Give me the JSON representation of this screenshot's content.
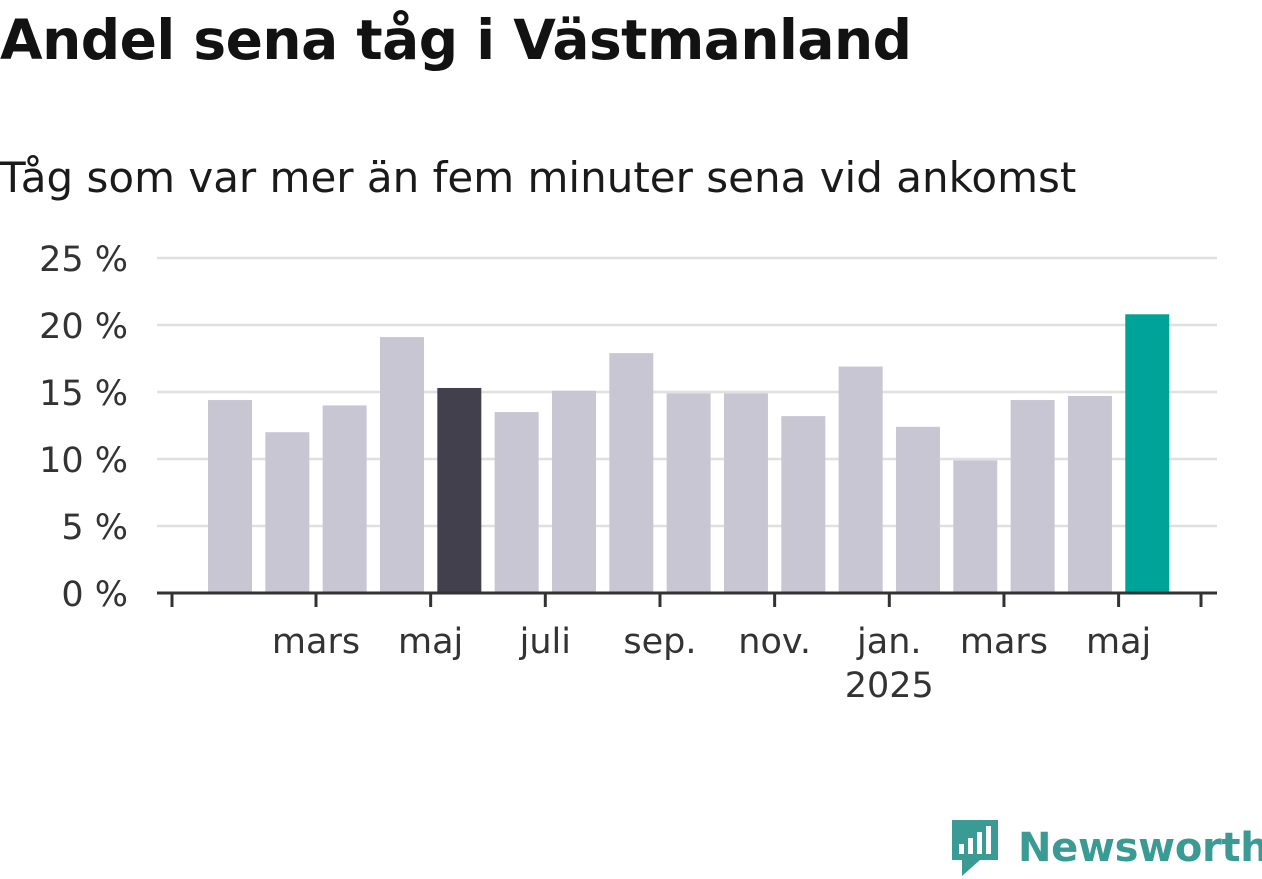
{
  "header": {
    "title": "Andel sena tåg i Västmanland",
    "subtitle": "Tåg som var mer än fem minuter sena vid ankomst"
  },
  "logo": {
    "text": "Newsworthy",
    "icon": "newsworthy-logo-icon"
  },
  "colors": {
    "bar_default": "#c8c6d2",
    "bar_highlight_dark": "#43404d",
    "bar_highlight_latest": "#00a398",
    "gridline": "#e0e0e0",
    "axis": "#333333",
    "brand": "#3a9a94"
  },
  "chart_data": {
    "type": "bar",
    "title": "Andel sena tåg i Västmanland",
    "subtitle": "Tåg som var mer än fem minuter sena vid ankomst",
    "xlabel": "",
    "ylabel": "",
    "ylim": [
      0,
      25
    ],
    "y_ticks": [
      0,
      5,
      10,
      15,
      20,
      25
    ],
    "y_tick_labels": [
      "0 %",
      "5 %",
      "10 %",
      "15 %",
      "20 %",
      "25 %"
    ],
    "x_tick_labels": [
      {
        "after_bar": 1,
        "label": "mars",
        "sub": ""
      },
      {
        "after_bar": 3,
        "label": "maj",
        "sub": ""
      },
      {
        "after_bar": 5,
        "label": "juli",
        "sub": ""
      },
      {
        "after_bar": 7,
        "label": "sep.",
        "sub": ""
      },
      {
        "after_bar": 9,
        "label": "nov.",
        "sub": ""
      },
      {
        "after_bar": 11,
        "label": "jan.",
        "sub": "2025"
      },
      {
        "after_bar": 13,
        "label": "mars",
        "sub": ""
      },
      {
        "after_bar": 15,
        "label": "maj",
        "sub": ""
      }
    ],
    "values": [
      14.4,
      12.0,
      14.0,
      19.1,
      15.3,
      13.5,
      15.1,
      17.9,
      14.9,
      14.9,
      13.2,
      16.9,
      12.4,
      9.9,
      14.4,
      14.7,
      20.8
    ],
    "bar_colors": [
      "default",
      "default",
      "default",
      "default",
      "dark",
      "default",
      "default",
      "default",
      "default",
      "default",
      "default",
      "default",
      "default",
      "default",
      "default",
      "default",
      "latest"
    ],
    "grid": true,
    "legend": "none"
  }
}
